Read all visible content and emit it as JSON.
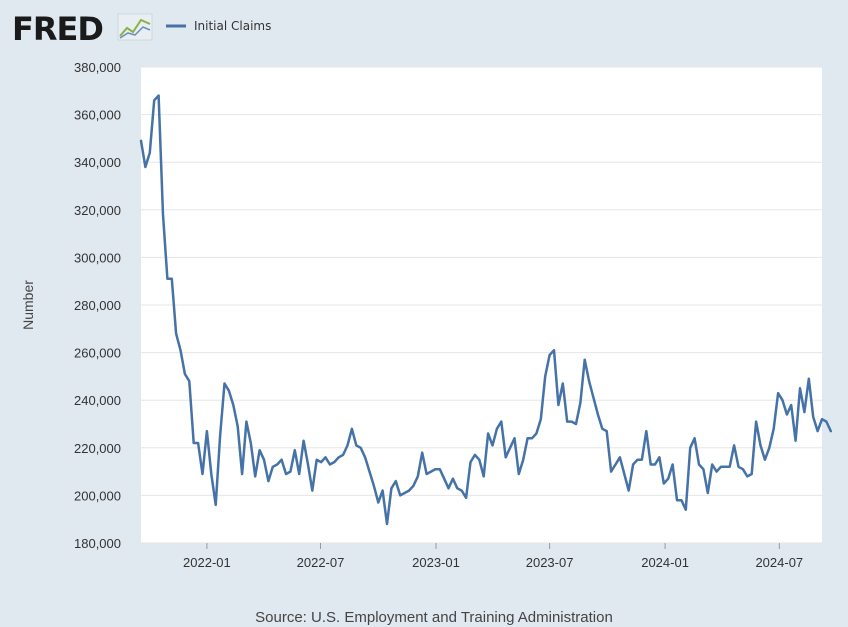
{
  "logo": {
    "text": "FRED",
    "mark": "chart-line-icon"
  },
  "chart_data": {
    "type": "line",
    "title": "",
    "xlabel": "",
    "ylabel": "Number",
    "ylim": [
      180000,
      380000
    ],
    "yticks": [
      180000,
      200000,
      220000,
      240000,
      260000,
      280000,
      300000,
      320000,
      340000,
      360000,
      380000
    ],
    "xlim": [
      "2021-09-18",
      "2024-09-07"
    ],
    "xticks": [
      {
        "date": "2022-01-01",
        "label": "2022-01"
      },
      {
        "date": "2022-07-01",
        "label": "2022-07"
      },
      {
        "date": "2023-01-01",
        "label": "2023-01"
      },
      {
        "date": "2023-07-01",
        "label": "2023-07"
      },
      {
        "date": "2024-01-01",
        "label": "2024-01"
      },
      {
        "date": "2024-07-01",
        "label": "2024-07"
      }
    ],
    "grid": true,
    "legend_position": "top-left",
    "series": [
      {
        "name": "Initial Claims",
        "color": "#4572a7",
        "start_date": "2021-09-18",
        "interval_days": 7,
        "values": [
          349000,
          338000,
          344000,
          366000,
          368000,
          318000,
          291000,
          291000,
          268000,
          261000,
          251000,
          248000,
          222000,
          222000,
          209000,
          227000,
          209000,
          196000,
          225000,
          247000,
          244000,
          238000,
          229000,
          209000,
          231000,
          222000,
          208000,
          219000,
          215000,
          206000,
          212000,
          213000,
          215000,
          209000,
          210000,
          219000,
          209000,
          223000,
          213000,
          202000,
          215000,
          214000,
          216000,
          213000,
          214000,
          216000,
          217000,
          221000,
          228000,
          221000,
          220000,
          216000,
          210000,
          204000,
          197000,
          202000,
          188000,
          203000,
          206000,
          200000,
          201000,
          202000,
          204000,
          208000,
          218000,
          209000,
          210000,
          211000,
          211000,
          207000,
          203000,
          207000,
          203000,
          202000,
          199000,
          214000,
          217000,
          215000,
          208000,
          226000,
          221000,
          228000,
          231000,
          216000,
          220000,
          224000,
          209000,
          215000,
          224000,
          224000,
          226000,
          232000,
          250000,
          259000,
          261000,
          238000,
          247000,
          231000,
          231000,
          230000,
          239000,
          257000,
          248000,
          241000,
          234000,
          228000,
          227000,
          210000,
          213000,
          216000,
          209000,
          202000,
          213000,
          215000,
          215000,
          227000,
          213000,
          213000,
          216000,
          205000,
          207000,
          213000,
          198000,
          198000,
          194000,
          220000,
          224000,
          213000,
          211000,
          201000,
          213000,
          210000,
          212000,
          212000,
          212000,
          221000,
          212000,
          211000,
          208000,
          209000,
          231000,
          221000,
          215000,
          220000,
          228000,
          243000,
          240000,
          234000,
          238000,
          223000,
          245000,
          235000,
          249000,
          233000,
          227000,
          232000,
          231000,
          227000
        ]
      }
    ],
    "source": "Source: U.S. Employment and Training Administration"
  }
}
